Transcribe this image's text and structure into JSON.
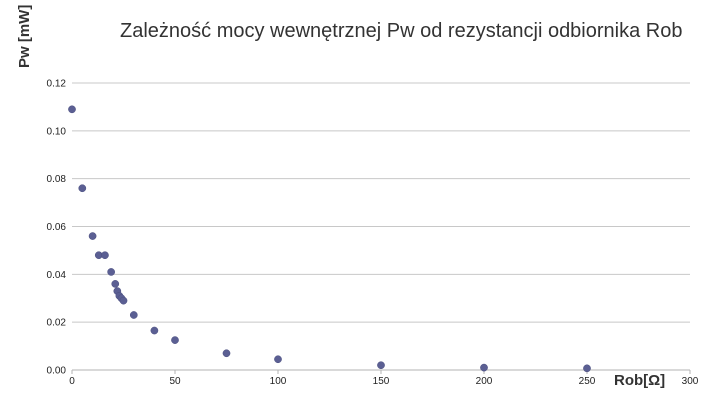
{
  "chart_data": {
    "type": "scatter",
    "title": "Zależność mocy wewnętrznej Pw od rezystancji odbiornika Rob",
    "xlabel": "Rob[Ω]",
    "ylabel": "Pw [mW]",
    "xlim": [
      0,
      300
    ],
    "ylim": [
      0,
      0.12
    ],
    "x_ticks": [
      0,
      50,
      100,
      150,
      200,
      250,
      300
    ],
    "y_ticks": [
      0.0,
      0.02,
      0.04,
      0.06,
      0.08,
      0.1,
      0.12
    ],
    "x_tick_labels": [
      "0",
      "50",
      "100",
      "150",
      "200",
      "250",
      "300"
    ],
    "y_tick_labels": [
      "0.00",
      "0.02",
      "0.04",
      "0.06",
      "0.08",
      "0.10",
      "0.12"
    ],
    "grid": "horizontal",
    "legend": "none",
    "point_color": "#5b5f93",
    "points": [
      {
        "x": 0,
        "y": 0.109
      },
      {
        "x": 5,
        "y": 0.076
      },
      {
        "x": 10,
        "y": 0.056
      },
      {
        "x": 13,
        "y": 0.048
      },
      {
        "x": 16,
        "y": 0.048
      },
      {
        "x": 19,
        "y": 0.041
      },
      {
        "x": 21,
        "y": 0.036
      },
      {
        "x": 22,
        "y": 0.033
      },
      {
        "x": 23,
        "y": 0.031
      },
      {
        "x": 24,
        "y": 0.03
      },
      {
        "x": 25,
        "y": 0.029
      },
      {
        "x": 30,
        "y": 0.023
      },
      {
        "x": 40,
        "y": 0.0165
      },
      {
        "x": 50,
        "y": 0.0125
      },
      {
        "x": 75,
        "y": 0.007
      },
      {
        "x": 100,
        "y": 0.0045
      },
      {
        "x": 150,
        "y": 0.002
      },
      {
        "x": 200,
        "y": 0.001
      },
      {
        "x": 250,
        "y": 0.0007
      }
    ]
  }
}
